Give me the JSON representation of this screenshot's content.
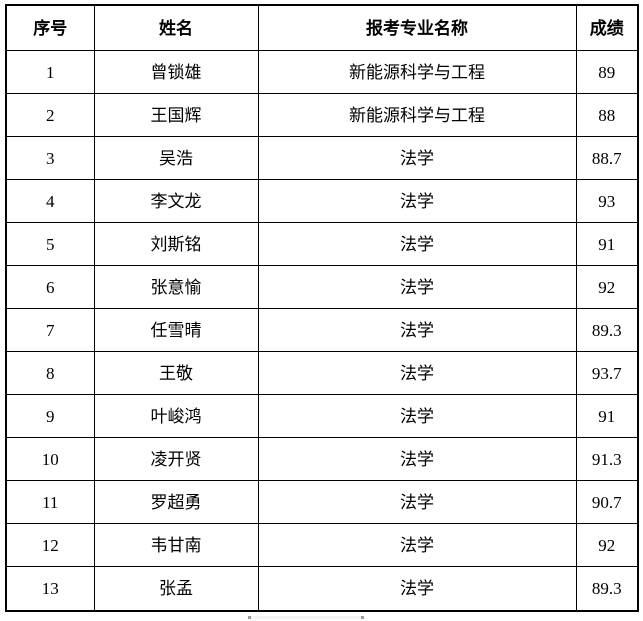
{
  "colors": {
    "background": "#ffffff",
    "border": "#000000",
    "text": "#000000",
    "artifact": "#9a9aa0"
  },
  "table": {
    "columns": [
      {
        "key": "index",
        "label": "序号"
      },
      {
        "key": "name",
        "label": "姓名"
      },
      {
        "key": "major",
        "label": "报考专业名称"
      },
      {
        "key": "score",
        "label": "成绩"
      }
    ],
    "rows": [
      {
        "index": "1",
        "name": "曾锁雄",
        "major": "新能源科学与工程",
        "score": "89"
      },
      {
        "index": "2",
        "name": "王国辉",
        "major": "新能源科学与工程",
        "score": "88"
      },
      {
        "index": "3",
        "name": "吴浩",
        "major": "法学",
        "score": "88.7"
      },
      {
        "index": "4",
        "name": "李文龙",
        "major": "法学",
        "score": "93"
      },
      {
        "index": "5",
        "name": "刘斯铭",
        "major": "法学",
        "score": "91"
      },
      {
        "index": "6",
        "name": "张意愉",
        "major": "法学",
        "score": "92"
      },
      {
        "index": "7",
        "name": "任雪晴",
        "major": "法学",
        "score": "89.3"
      },
      {
        "index": "8",
        "name": "王敬",
        "major": "法学",
        "score": "93.7"
      },
      {
        "index": "9",
        "name": "叶峻鸿",
        "major": "法学",
        "score": "91"
      },
      {
        "index": "10",
        "name": "凌开贤",
        "major": "法学",
        "score": "91.3"
      },
      {
        "index": "11",
        "name": "罗超勇",
        "major": "法学",
        "score": "90.7"
      },
      {
        "index": "12",
        "name": "韦甘南",
        "major": "法学",
        "score": "92"
      },
      {
        "index": "13",
        "name": "张孟",
        "major": "法学",
        "score": "89.3"
      }
    ]
  }
}
